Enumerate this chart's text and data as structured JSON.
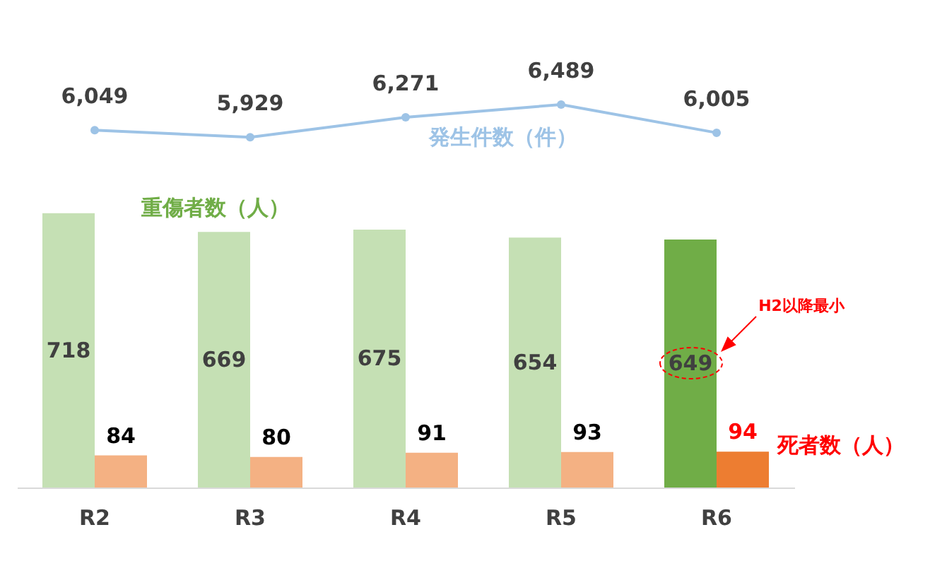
{
  "chart_data": [
    {
      "type": "line",
      "categories": [
        null,
        null,
        null,
        null,
        null
      ],
      "series": [
        {
          "name": "発生件数（件）",
          "color": "#9dc3e6",
          "marker": "circle",
          "values": [
            6049,
            5929,
            6271,
            6489,
            6005
          ],
          "value_labels": [
            "6,049",
            "5,929",
            "6,271",
            "6,489",
            "6,005"
          ]
        }
      ],
      "tick_labels": false
    },
    {
      "type": "bar",
      "categories": [
        "R2",
        "R3",
        "R4",
        "R5",
        "R6"
      ],
      "series": [
        {
          "name": "重傷者数（人）",
          "colors": [
            "#c5e0b4",
            "#c5e0b4",
            "#c5e0b4",
            "#c5e0b4",
            "#70ad47"
          ],
          "values": [
            718,
            669,
            675,
            654,
            649
          ]
        },
        {
          "name": "死者数（人）",
          "colors": [
            "#f4b183",
            "#f4b183",
            "#f4b183",
            "#f4b183",
            "#ed7d31"
          ],
          "values": [
            84,
            80,
            91,
            93,
            94
          ]
        }
      ],
      "data_labels": true,
      "tick_labels": "x",
      "annotations": [
        "H2以降最小"
      ]
    }
  ]
}
